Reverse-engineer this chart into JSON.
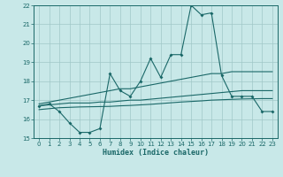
{
  "xlabel": "Humidex (Indice chaleur)",
  "bg_color": "#c8e8e8",
  "grid_color": "#a0c8c8",
  "line_color": "#1a6868",
  "xlim": [
    -0.5,
    23.5
  ],
  "ylim": [
    15,
    22
  ],
  "x_ticks": [
    0,
    1,
    2,
    3,
    4,
    5,
    6,
    7,
    8,
    9,
    10,
    11,
    12,
    13,
    14,
    15,
    16,
    17,
    18,
    19,
    20,
    21,
    22,
    23
  ],
  "y_ticks": [
    15,
    16,
    17,
    18,
    19,
    20,
    21,
    22
  ],
  "humidex_line": {
    "x": [
      0,
      1,
      2,
      3,
      4,
      5,
      6,
      7,
      8,
      9,
      10,
      11,
      12,
      13,
      14,
      15,
      16,
      17,
      18,
      19,
      20,
      21,
      22,
      23
    ],
    "y": [
      16.7,
      16.8,
      16.4,
      15.8,
      15.3,
      15.3,
      15.5,
      18.4,
      17.5,
      17.2,
      18.0,
      19.2,
      18.2,
      19.4,
      19.4,
      22.0,
      21.5,
      21.6,
      18.3,
      17.2,
      17.2,
      17.2,
      16.4,
      16.4
    ]
  },
  "upper_line": {
    "x": [
      0,
      1,
      2,
      3,
      4,
      5,
      6,
      7,
      8,
      9,
      10,
      11,
      12,
      13,
      14,
      15,
      16,
      17,
      18,
      19,
      20,
      21,
      22,
      23
    ],
    "y": [
      16.8,
      16.9,
      17.0,
      17.1,
      17.2,
      17.3,
      17.4,
      17.5,
      17.6,
      17.6,
      17.7,
      17.8,
      17.9,
      18.0,
      18.1,
      18.2,
      18.3,
      18.4,
      18.4,
      18.5,
      18.5,
      18.5,
      18.5,
      18.5
    ]
  },
  "middle_line": {
    "x": [
      0,
      1,
      2,
      3,
      4,
      5,
      6,
      7,
      8,
      9,
      10,
      11,
      12,
      13,
      14,
      15,
      16,
      17,
      18,
      19,
      20,
      21,
      22,
      23
    ],
    "y": [
      16.7,
      16.75,
      16.8,
      16.85,
      16.85,
      16.85,
      16.9,
      16.9,
      16.95,
      17.0,
      17.0,
      17.05,
      17.1,
      17.15,
      17.2,
      17.25,
      17.3,
      17.35,
      17.4,
      17.45,
      17.5,
      17.5,
      17.5,
      17.5
    ]
  },
  "lower_line": {
    "x": [
      0,
      1,
      2,
      3,
      4,
      5,
      6,
      7,
      8,
      9,
      10,
      11,
      12,
      13,
      14,
      15,
      16,
      17,
      18,
      19,
      20,
      21,
      22,
      23
    ],
    "y": [
      16.5,
      16.55,
      16.6,
      16.62,
      16.64,
      16.65,
      16.66,
      16.67,
      16.7,
      16.72,
      16.75,
      16.78,
      16.82,
      16.86,
      16.9,
      16.93,
      16.96,
      17.0,
      17.02,
      17.04,
      17.06,
      17.07,
      17.08,
      17.08
    ]
  }
}
